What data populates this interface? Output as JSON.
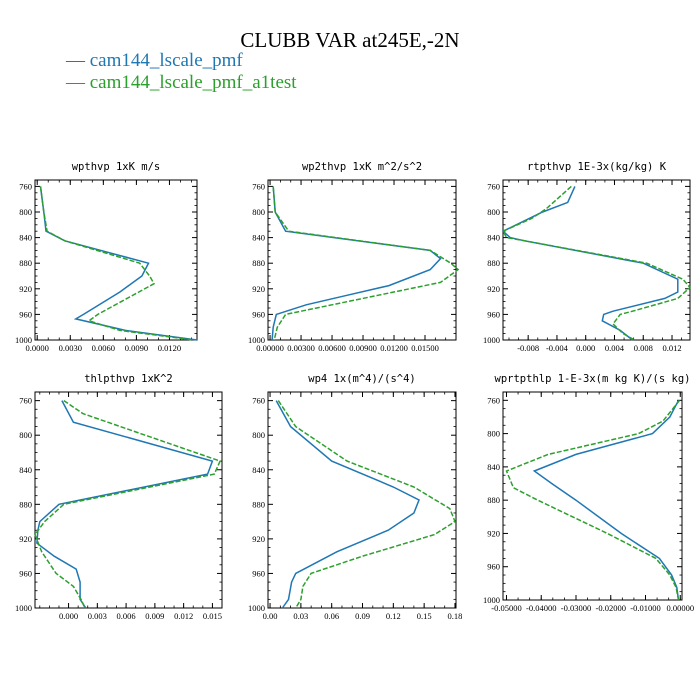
{
  "figure": {
    "title": "CLUBB VAR at245E,-2N",
    "legend": [
      {
        "label": "cam144_lscale_pmf",
        "color": "#1f77b4"
      },
      {
        "label": "cam144_lscale_pmf_a1test",
        "color": "#2ca02c"
      }
    ]
  },
  "chart_data": [
    {
      "type": "line",
      "title": "wpthvp  1xK m/s",
      "xlim": [
        -0.0002,
        0.0145
      ],
      "ylim": [
        1000,
        750
      ],
      "xticks": [
        "0.0000",
        "0.0030",
        "0.0060",
        "0.0090",
        "0.0120"
      ],
      "xtick_values": [
        0.0,
        0.003,
        0.006,
        0.009,
        0.012
      ],
      "yticks": [
        760,
        800,
        840,
        880,
        920,
        960,
        1000
      ],
      "series": [
        {
          "y": [
            760,
            800,
            830,
            845,
            880,
            900,
            925,
            960,
            967,
            985,
            1000
          ],
          "x": [
            0.0003,
            0.0006,
            0.0008,
            0.0025,
            0.0101,
            0.0095,
            0.0075,
            0.0042,
            0.0035,
            0.008,
            0.0145
          ]
        },
        {
          "y": [
            760,
            800,
            830,
            845,
            880,
            900,
            912,
            960,
            970,
            985,
            1000
          ],
          "x": [
            0.0003,
            0.0006,
            0.0009,
            0.0025,
            0.0093,
            0.0102,
            0.0106,
            0.0055,
            0.0047,
            0.0075,
            0.0142
          ]
        }
      ]
    },
    {
      "type": "line",
      "title": "wp2thvp  1xK m^2/s^2",
      "xlim": [
        -0.0002,
        0.018
      ],
      "ylim": [
        1000,
        750
      ],
      "xticks": [
        "0.00000",
        "0.00300",
        "0.00600",
        "0.00900",
        "0.01200",
        "0.01500"
      ],
      "xtick_values": [
        0.0,
        0.003,
        0.006,
        0.009,
        0.012,
        0.015
      ],
      "yticks": [
        760,
        800,
        840,
        880,
        920,
        960,
        1000
      ],
      "series": [
        {
          "y": [
            760,
            800,
            830,
            860,
            873,
            890,
            915,
            930,
            945,
            960,
            980,
            1000
          ],
          "x": [
            0.0003,
            0.0005,
            0.0015,
            0.0155,
            0.0165,
            0.0155,
            0.0115,
            0.0075,
            0.0035,
            0.0006,
            0.0003,
            0.0002
          ]
        },
        {
          "y": [
            760,
            800,
            830,
            860,
            880,
            890,
            910,
            930,
            945,
            960,
            980,
            1000
          ],
          "x": [
            0.0003,
            0.0005,
            0.0018,
            0.0155,
            0.0175,
            0.0182,
            0.0165,
            0.0105,
            0.006,
            0.0015,
            0.0007,
            0.0004
          ]
        }
      ]
    },
    {
      "type": "line",
      "title": "rtpthvp  1E-3x(kg/kg) K",
      "xlim": [
        -0.0115,
        0.0145
      ],
      "ylim": [
        1000,
        750
      ],
      "xticks": [
        "-0.008",
        "-0.004",
        "0.000",
        "0.004",
        "0.008",
        "0.012"
      ],
      "xtick_values": [
        -0.008,
        -0.004,
        0.0,
        0.004,
        0.008,
        0.012
      ],
      "yticks": [
        760,
        800,
        840,
        880,
        920,
        960,
        1000
      ],
      "series": [
        {
          "y": [
            760,
            785,
            800,
            830,
            840,
            845,
            880,
            905,
            925,
            935,
            955,
            960,
            970,
            985,
            1000
          ],
          "x": [
            -0.0015,
            -0.0025,
            -0.006,
            -0.0115,
            -0.0105,
            -0.0085,
            0.008,
            0.0128,
            0.0128,
            0.011,
            0.0038,
            0.0025,
            0.0023,
            0.0048,
            0.0065
          ]
        },
        {
          "y": [
            760,
            795,
            810,
            830,
            840,
            845,
            880,
            905,
            918,
            935,
            955,
            960,
            975,
            990,
            1000
          ],
          "x": [
            -0.002,
            -0.0055,
            -0.0075,
            -0.0115,
            -0.011,
            -0.0085,
            0.0085,
            0.0135,
            0.0145,
            0.0128,
            0.0065,
            0.0048,
            0.0038,
            0.0052,
            0.0068
          ]
        }
      ]
    },
    {
      "type": "line",
      "title": "thlpthvp  1xK^2",
      "xlim": [
        -0.0035,
        0.016
      ],
      "ylim": [
        1000,
        750
      ],
      "xticks": [
        "0.000",
        "0.003",
        "0.006",
        "0.009",
        "0.012",
        "0.015"
      ],
      "xtick_values": [
        0.0,
        0.003,
        0.006,
        0.009,
        0.012,
        0.015
      ],
      "yticks": [
        760,
        800,
        840,
        880,
        920,
        960,
        1000
      ],
      "series": [
        {
          "y": [
            760,
            785,
            830,
            845,
            880,
            900,
            910,
            925,
            940,
            955,
            970,
            990,
            1000
          ],
          "x": [
            -0.0007,
            0.0005,
            0.015,
            0.0145,
            -0.001,
            -0.003,
            -0.0032,
            -0.0033,
            -0.0015,
            0.0008,
            0.0012,
            0.0012,
            0.0018
          ]
        },
        {
          "y": [
            760,
            775,
            830,
            845,
            880,
            900,
            915,
            935,
            960,
            975,
            990,
            1000
          ],
          "x": [
            -0.0005,
            0.0015,
            0.0158,
            0.0152,
            -0.0005,
            -0.0025,
            -0.0035,
            -0.0028,
            -0.0013,
            0.0005,
            0.0013,
            0.0017
          ]
        }
      ]
    },
    {
      "type": "line",
      "title": "wp4  1x(m^4)/(s^4)",
      "xlim": [
        -0.002,
        0.181
      ],
      "ylim": [
        1000,
        750
      ],
      "xticks": [
        "0.00",
        "0.03",
        "0.06",
        "0.09",
        "0.12",
        "0.15",
        "0.18"
      ],
      "xtick_values": [
        0.0,
        0.03,
        0.06,
        0.09,
        0.12,
        0.15,
        0.18
      ],
      "yticks": [
        760,
        800,
        840,
        880,
        920,
        960,
        1000
      ],
      "series": [
        {
          "y": [
            760,
            790,
            830,
            860,
            875,
            890,
            910,
            935,
            960,
            970,
            990,
            1000
          ],
          "x": [
            0.006,
            0.02,
            0.06,
            0.12,
            0.145,
            0.14,
            0.115,
            0.065,
            0.025,
            0.021,
            0.018,
            0.012
          ]
        },
        {
          "y": [
            760,
            790,
            830,
            860,
            885,
            900,
            915,
            940,
            960,
            975,
            990,
            1000
          ],
          "x": [
            0.008,
            0.025,
            0.075,
            0.14,
            0.175,
            0.18,
            0.16,
            0.09,
            0.04,
            0.032,
            0.03,
            0.025
          ]
        }
      ]
    },
    {
      "type": "line",
      "title": "wprtpthlp  1-E-3x(m kg K)/(s kg)",
      "xlim": [
        -0.051,
        0.0005
      ],
      "ylim": [
        1000,
        750
      ],
      "xticks": [
        "-0.05000",
        "-0.04000",
        "-0.03000",
        "-0.02000",
        "-0.01000",
        "0.00000"
      ],
      "xtick_values": [
        -0.05,
        -0.04,
        -0.03,
        -0.02,
        -0.01,
        0.0
      ],
      "yticks": [
        760,
        800,
        840,
        880,
        920,
        960,
        1000
      ],
      "series": [
        {
          "y": [
            760,
            780,
            800,
            825,
            845,
            860,
            880,
            920,
            950,
            970,
            985,
            1000
          ],
          "x": [
            -0.0005,
            -0.003,
            -0.008,
            -0.03,
            -0.042,
            -0.037,
            -0.03,
            -0.017,
            -0.006,
            -0.0025,
            -0.001,
            -0.0005
          ]
        },
        {
          "y": [
            760,
            785,
            800,
            825,
            845,
            865,
            880,
            920,
            950,
            970,
            985,
            1000
          ],
          "x": [
            -0.0002,
            -0.005,
            -0.012,
            -0.038,
            -0.05,
            -0.048,
            -0.041,
            -0.021,
            -0.007,
            -0.003,
            -0.0012,
            -0.0005
          ]
        }
      ]
    }
  ]
}
